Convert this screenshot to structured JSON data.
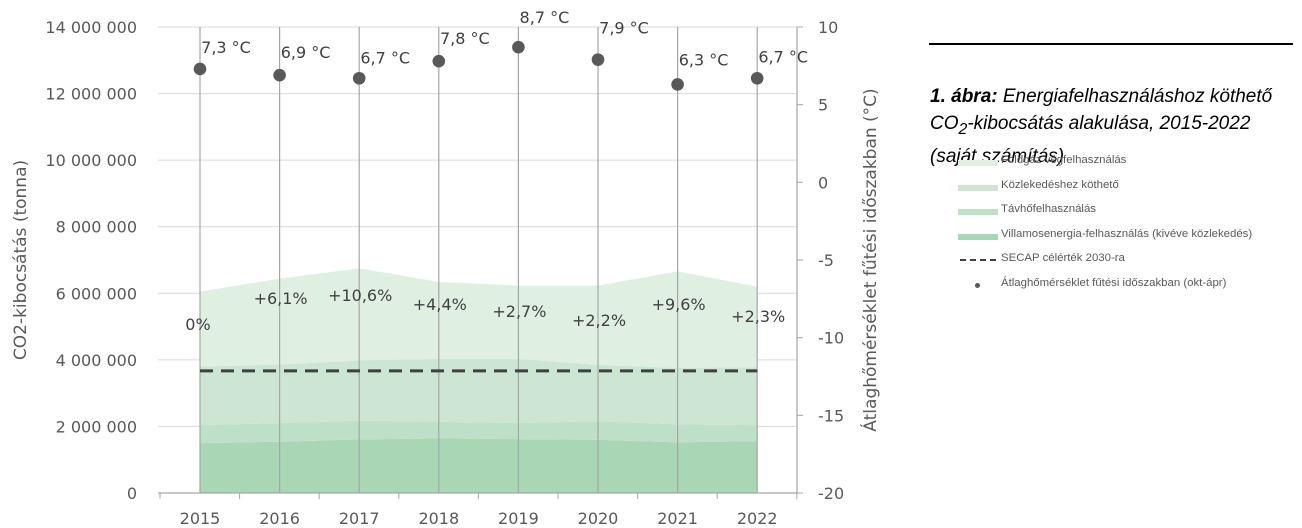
{
  "chart_data": {
    "type": "area",
    "categories": [
      "2015",
      "2016",
      "2017",
      "2018",
      "2019",
      "2020",
      "2021",
      "2022"
    ],
    "series": [
      {
        "name": "Villamosenergia-felhasználás (kivéve közlekedés)",
        "color": "#a9d6b5",
        "values": [
          1500000,
          1540000,
          1610000,
          1640000,
          1620000,
          1600000,
          1520000,
          1560000
        ]
      },
      {
        "name": "Távhőfelhasználás",
        "color": "#bfe0c8",
        "values": [
          540000,
          560000,
          560000,
          500000,
          480000,
          560000,
          540000,
          480000
        ]
      },
      {
        "name": "Közlekedéshez köthető",
        "color": "#cde6d3",
        "values": [
          1760000,
          1760000,
          1810000,
          1890000,
          1930000,
          1690000,
          1700000,
          1740000
        ]
      },
      {
        "name": "Földgáz végfelhasználás",
        "color": "#dff0e3",
        "values": [
          2250000,
          2580000,
          2770000,
          2310000,
          2200000,
          2380000,
          2900000,
          2420000
        ]
      }
    ],
    "target": {
      "name": "SECAP célérték 2030-ra",
      "value": 3670000
    },
    "temperature": {
      "name": "Átlaghőmérséklet fűtési időszakban (okt-ápr)",
      "values": [
        7.3,
        6.9,
        6.7,
        7.8,
        8.7,
        7.9,
        6.3,
        6.7
      ],
      "labels": [
        "7,3 °C",
        "6,9 °C",
        "6,7 °C",
        "7,8 °C",
        "8,7 °C",
        "7,9 °C",
        "6,3 °C",
        "6,7 °C"
      ]
    },
    "change_labels": [
      "0%",
      "+6,1%",
      "+10,6%",
      "+4,4%",
      "+2,7%",
      "+2,2%",
      "+9,6%",
      "+2,3%"
    ],
    "ylabel": "CO2-kibocsátás (tonna)",
    "y2label": "Átlaghőmérséklet fűtési időszakban (°C)",
    "ylim": [
      0,
      14000000
    ],
    "y2lim": [
      -20,
      10
    ],
    "yticks": [
      "0",
      "2 000 000",
      "4 000 000",
      "6 000 000",
      "8 000 000",
      "10 000 000",
      "12 000 000",
      "14 000 000"
    ],
    "y2ticks": [
      "-20",
      "-15",
      "-10",
      "-5",
      "0",
      "5",
      "10"
    ],
    "grid": true,
    "legend_position": "right"
  },
  "caption": {
    "number": "1. ábra:",
    "text_pre": " Energiafelhasználáshoz köthető CO",
    "text_sub": "2",
    "text_post": "-kibocsátás alakulása, 2015-2022 (saját számítás)"
  },
  "legend": [
    {
      "label": "Földgáz végfelhasználás",
      "kind": "area",
      "color": "#dff0e3"
    },
    {
      "label": "Közlekedéshez köthető",
      "kind": "area",
      "color": "#cde6d3"
    },
    {
      "label": "Távhőfelhasználás",
      "kind": "area",
      "color": "#bfe0c8"
    },
    {
      "label": "Villamosenergia-felhasználás (kivéve közlekedés)",
      "kind": "area",
      "color": "#a9d6b5"
    },
    {
      "label": "SECAP célérték 2030-ra",
      "kind": "dash",
      "color": "#404040"
    },
    {
      "label": "Átlaghőmérséklet fűtési időszakban (okt-ápr)",
      "kind": "dot",
      "color": "#595959"
    }
  ]
}
